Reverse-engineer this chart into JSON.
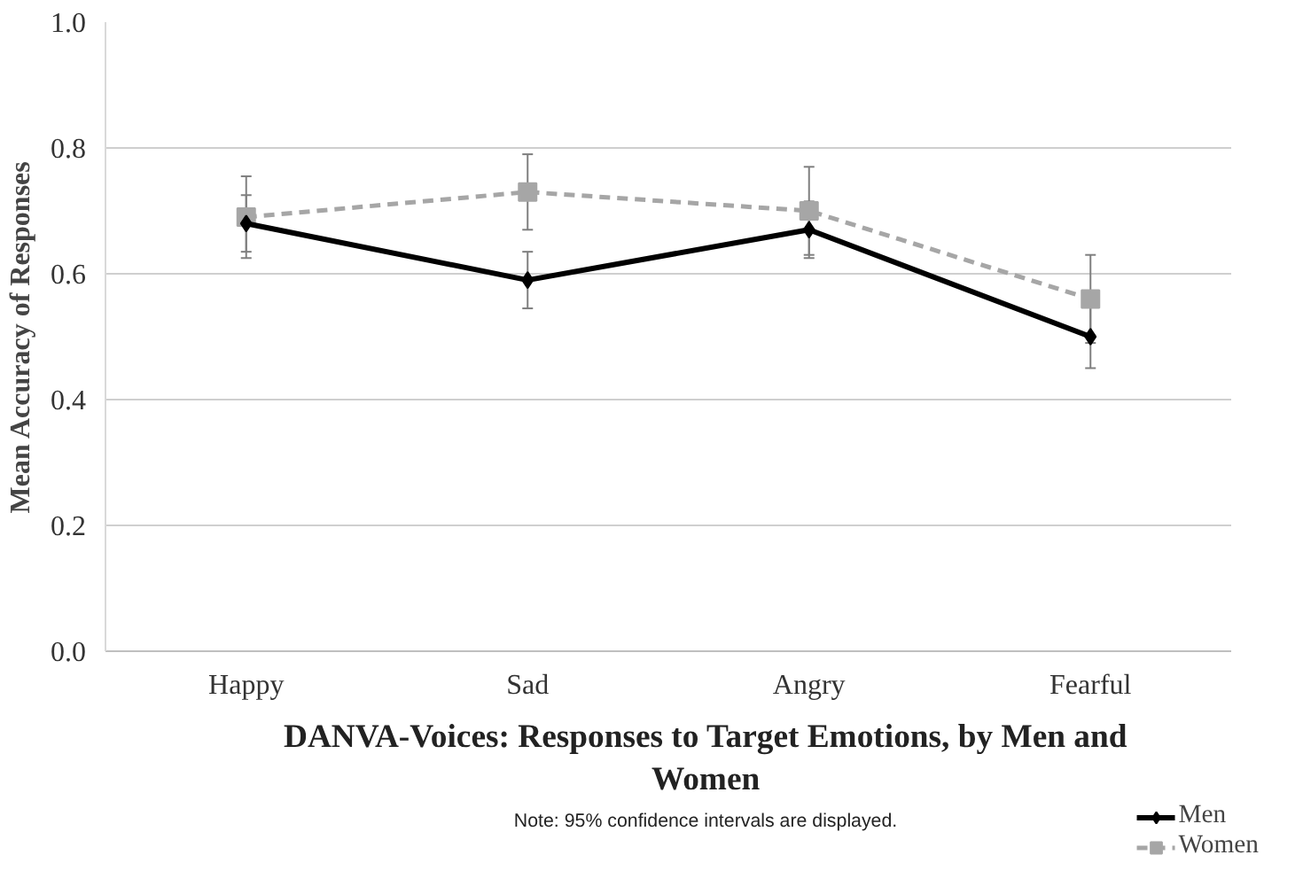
{
  "chart_data": {
    "type": "line",
    "title": "DANVA-Voices: Responses to Target Emotions, by Men and Women",
    "ylabel": "Mean Accuracy of Responses",
    "annotations": [
      "Note: 95% confidence intervals are displayed."
    ],
    "categories": [
      "Happy",
      "Sad",
      "Angry",
      "Fearful"
    ],
    "ylim": [
      0,
      1
    ],
    "yticks": [
      "0.0",
      0.2,
      0.4,
      0.6,
      0.8,
      "1.0"
    ],
    "grid": "y",
    "legend": "bottom right",
    "series": [
      {
        "name": "Men",
        "color": "#000000",
        "marker": "diamond",
        "line_style": "solid",
        "values": [
          0.68,
          0.59,
          0.67,
          0.5
        ],
        "errors": [
          0.045,
          0.045,
          0.045,
          0.05
        ]
      },
      {
        "name": "Women",
        "color": "#a6a6a6",
        "marker": "square",
        "line_style": "dashed",
        "values": [
          0.69,
          0.73,
          0.7,
          0.56
        ],
        "errors": [
          0.065,
          0.06,
          0.07,
          0.07
        ]
      }
    ]
  }
}
